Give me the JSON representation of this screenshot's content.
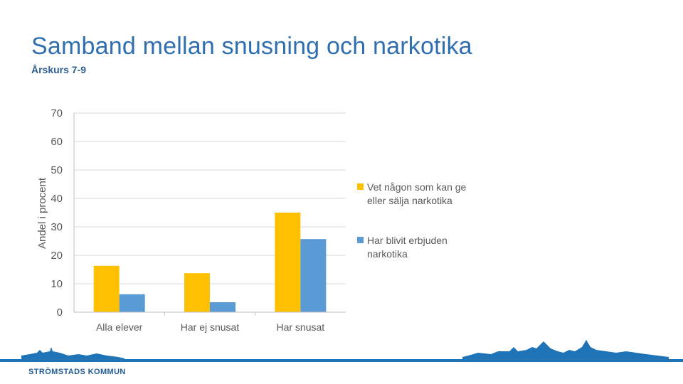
{
  "slide": {
    "title": "Samband mellan snusning och narkotika",
    "subtitle": "Årskurs 7-9"
  },
  "chart_data": {
    "type": "bar",
    "categories": [
      "Alla elever",
      "Har ej snusat",
      "Har snusat"
    ],
    "series": [
      {
        "name": "Vet någon som kan ge eller sälja narkotika",
        "values": [
          16.3,
          13.7,
          35
        ],
        "color": "#ffc000"
      },
      {
        "name": "Har blivit erbjuden narkotika",
        "values": [
          6.3,
          3.5,
          25.7
        ],
        "color": "#5b9bd5"
      }
    ],
    "ylabel": "Andel i procent",
    "xlabel": "",
    "ylim": [
      0,
      70
    ],
    "yticks": [
      0,
      10,
      20,
      30,
      40,
      50,
      60,
      70
    ],
    "grid": true,
    "legend_position": "right"
  },
  "footer": {
    "brand": "STRÖMSTADS KOMMUN",
    "accent_color": "#1f73b7"
  }
}
